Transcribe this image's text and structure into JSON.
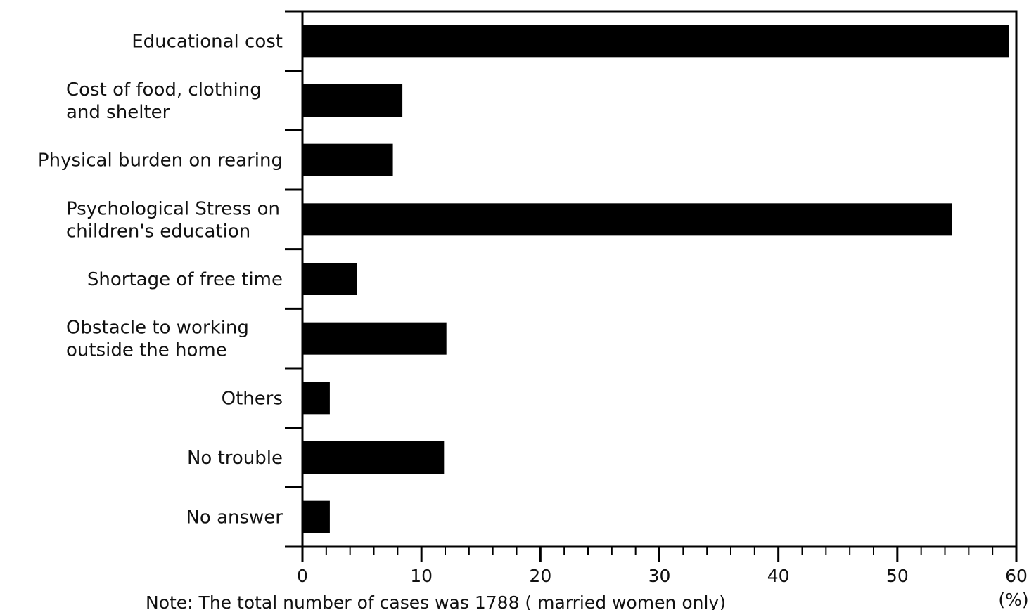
{
  "chart_data": {
    "type": "bar",
    "orientation": "horizontal",
    "categories": [
      [
        "Educational cost"
      ],
      [
        "Cost of food, clothing",
        "and shelter"
      ],
      [
        "Physical burden on rearing"
      ],
      [
        "Psychological Stress on",
        "children's education"
      ],
      [
        "Shortage of free time"
      ],
      [
        "Obstacle to working",
        "outside the home"
      ],
      [
        "Others"
      ],
      [
        "No trouble"
      ],
      [
        "No answer"
      ]
    ],
    "values": [
      59.4,
      8.4,
      7.6,
      54.6,
      4.6,
      12.1,
      2.3,
      11.9,
      2.3
    ],
    "xlim": [
      0,
      60
    ],
    "xticks": [
      "0",
      "10",
      "20",
      "30",
      "40",
      "50",
      "60"
    ],
    "minor_step": 2,
    "unit_label": "(%)",
    "note": "Note: The total number of cases was 1788 ( married women only)",
    "bar_color": "#000000",
    "grid": false
  }
}
